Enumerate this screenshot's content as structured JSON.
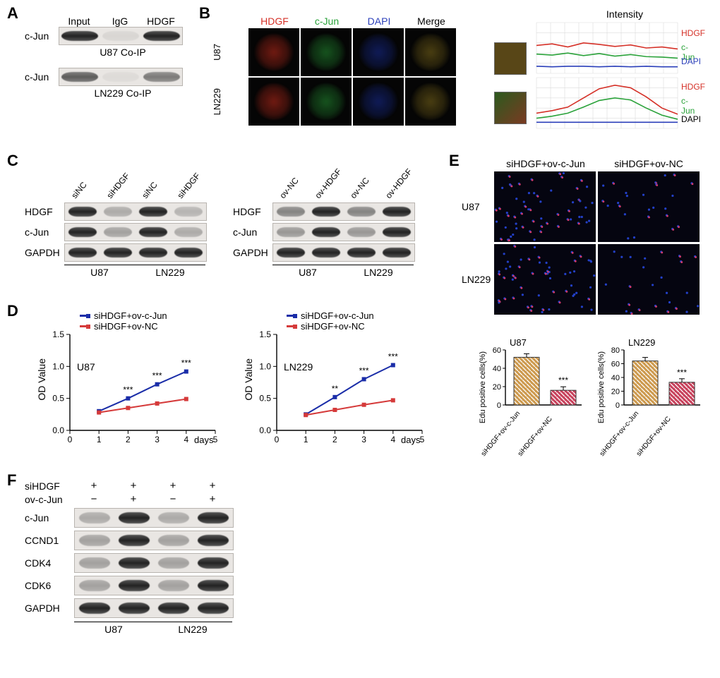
{
  "panels": {
    "A": "A",
    "B": "B",
    "C": "C",
    "D": "D",
    "E": "E",
    "F": "F"
  },
  "A": {
    "row_label": "c-Jun",
    "lanes": [
      "Input",
      "IgG",
      "HDGF"
    ],
    "caption_top": "U87 Co-IP",
    "caption_bottom": "LN229 Co-IP"
  },
  "B": {
    "col_headers": [
      "HDGF",
      "c-Jun",
      "DAPI",
      "Merge"
    ],
    "row_headers": [
      "U87",
      "LN229"
    ],
    "intensity_title": "Intensity",
    "traces": [
      "HDGF",
      "c-Jun",
      "DAPI"
    ],
    "colors": {
      "HDGF": "#d53027",
      "c-Jun": "#2aa23a",
      "DAPI": "#2b3fba"
    },
    "swatch_colors": {
      "HDGF": "#a52518",
      "c-Jun": "#1f7a2b",
      "DAPI": "#15267f",
      "Merge": "#6b5a18"
    },
    "u87_profile": {
      "HDGF": [
        55,
        58,
        52,
        60,
        57,
        53,
        56,
        50,
        52,
        48
      ],
      "c-Jun": [
        38,
        36,
        40,
        35,
        39,
        34,
        37,
        33,
        32,
        30
      ],
      "DAPI": [
        14,
        13,
        14,
        14,
        13,
        14,
        13,
        14,
        13,
        13
      ]
    },
    "ln229_profile": {
      "HDGF": [
        30,
        35,
        42,
        60,
        78,
        85,
        80,
        62,
        40,
        28
      ],
      "c-Jun": [
        20,
        24,
        30,
        42,
        55,
        60,
        56,
        40,
        26,
        18
      ],
      "DAPI": [
        12,
        12,
        12,
        12,
        12,
        12,
        12,
        12,
        12,
        12
      ]
    },
    "ymax": 100
  },
  "C": {
    "row_labels": [
      "HDGF",
      "c-Jun",
      "GAPDH"
    ],
    "left_cols": [
      "siNC",
      "siHDGF",
      "siNC",
      "siHDGF"
    ],
    "right_cols": [
      "ov-NC",
      "ov-HDGF",
      "ov-NC",
      "ov-HDGF"
    ],
    "cell_lines": [
      "U87",
      "LN229"
    ],
    "left_intensity": {
      "HDGF": [
        1.0,
        0.3,
        1.0,
        0.25
      ],
      "c-Jun": [
        1.0,
        0.35,
        1.0,
        0.3
      ],
      "GAPDH": [
        1.0,
        1.0,
        1.0,
        1.0
      ]
    },
    "right_intensity": {
      "HDGF": [
        0.5,
        1.0,
        0.5,
        1.0
      ],
      "c-Jun": [
        0.4,
        1.0,
        0.4,
        1.0
      ],
      "GAPDH": [
        1.0,
        1.0,
        1.0,
        1.0
      ]
    }
  },
  "D": {
    "legend": [
      "siHDGF+ov-c-Jun",
      "siHDGF+ov-NC"
    ],
    "legend_colors": {
      "siHDGF+ov-c-Jun": "#1a2da8",
      "siHDGF+ov-NC": "#d53a3a"
    },
    "ylabel": "OD Value",
    "xlabel": "days",
    "xticks": [
      0,
      1,
      2,
      3,
      4,
      5
    ],
    "yticks": [
      0,
      0.5,
      1.0,
      1.5
    ],
    "cell_left": "U87",
    "cell_right": "LN229",
    "u87": {
      "series1": [
        0.3,
        0.5,
        0.72,
        0.92
      ],
      "series2": [
        0.28,
        0.35,
        0.42,
        0.49
      ],
      "sig": [
        "",
        "***",
        "***",
        "***"
      ]
    },
    "ln229": {
      "series1": [
        0.25,
        0.52,
        0.8,
        1.02
      ],
      "series2": [
        0.24,
        0.32,
        0.4,
        0.47
      ],
      "sig": [
        "",
        "**",
        "***",
        "***"
      ]
    },
    "xvals": [
      1,
      2,
      3,
      4
    ],
    "axis_color": "#000000"
  },
  "E": {
    "col_headers": [
      "siHDGF+ov-c-Jun",
      "siHDGF+ov-NC"
    ],
    "row_headers": [
      "U87",
      "LN229"
    ],
    "bar": {
      "ylabel": "Edu positive cells(%)",
      "u87_title": "U87",
      "ln229_title": "LN229",
      "yticks_u87": [
        0,
        20,
        40,
        60
      ],
      "yticks_ln229": [
        0,
        20,
        40,
        60,
        80
      ],
      "categories": [
        "siHDGF+ov-c-Jun",
        "siHDGF+ov-NC"
      ],
      "u87_values": [
        52,
        16
      ],
      "ln229_values": [
        64,
        33
      ],
      "sig": "***",
      "colors": [
        "#cd9a4f",
        "#c8435d"
      ],
      "hatch": true,
      "ymax_u87": 60,
      "ymax_ln229": 80
    }
  },
  "F": {
    "cond_rows": [
      "siHDGF",
      "ov-c-Jun"
    ],
    "cond_vals": [
      [
        "+",
        "+",
        "+",
        "+"
      ],
      [
        "−",
        "+",
        "−",
        "+"
      ]
    ],
    "row_labels": [
      "c-Jun",
      "CCND1",
      "CDK4",
      "CDK6",
      "GAPDH"
    ],
    "cell_lines": [
      "U87",
      "LN229"
    ],
    "intensity": {
      "c-Jun": [
        0.3,
        1.0,
        0.3,
        1.0
      ],
      "CCND1": [
        0.35,
        1.0,
        0.35,
        1.0
      ],
      "CDK4": [
        0.35,
        1.0,
        0.35,
        1.0
      ],
      "CDK6": [
        0.35,
        1.0,
        0.35,
        1.0
      ],
      "GAPDH": [
        1.0,
        1.0,
        1.0,
        1.0
      ]
    }
  },
  "style": {
    "panel_label_fontsize": 22,
    "label_fontsize": 14,
    "tick_fontsize": 12,
    "line_width": 2,
    "marker_size": 5
  }
}
